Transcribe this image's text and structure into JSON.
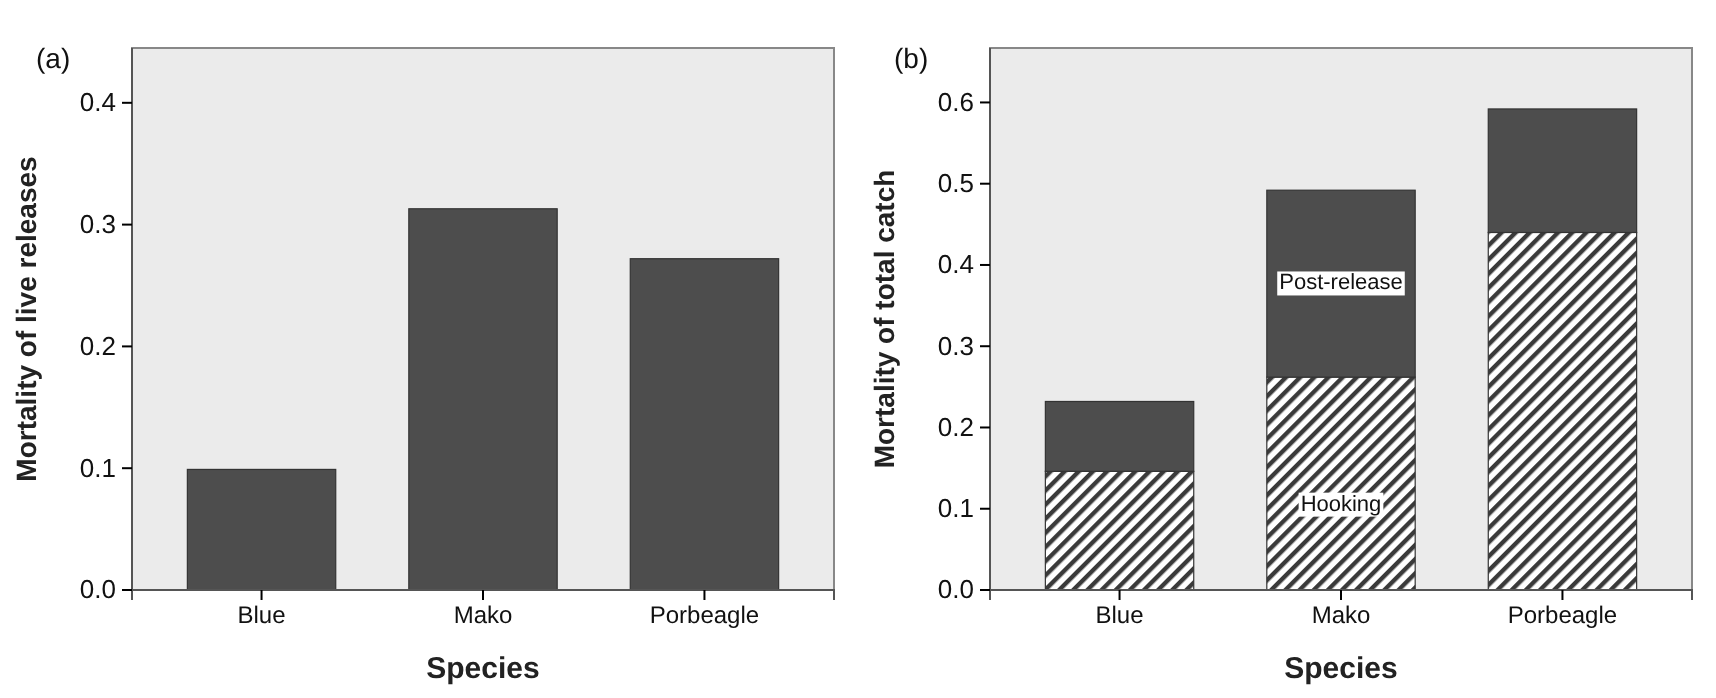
{
  "chart_data": [
    {
      "type": "bar",
      "title": "(a)",
      "xlabel": "Species",
      "ylabel": "Mortality of live releases",
      "categories": [
        "Blue",
        "Mako",
        "Porbeagle"
      ],
      "values": [
        0.099,
        0.313,
        0.272
      ],
      "color": "#4d4d4d",
      "ylim": [
        0,
        0.445
      ],
      "yticks": [
        {
          "value": 0,
          "label": "0.0"
        },
        0.1,
        0.2,
        0.3,
        0.4
      ],
      "grid": false
    },
    {
      "type": "bar",
      "title": "(b)",
      "xlabel": "Species",
      "ylabel": "Mortality of total catch",
      "categories": [
        "Blue",
        "Mako",
        "Porbeagle"
      ],
      "stacked": true,
      "series": [
        {
          "name": "Hooking",
          "color": "#3a3a3a",
          "values": [
            0.146,
            0.262,
            0.44
          ]
        },
        {
          "name": "Post-release",
          "color": "#4d4d4d",
          "values": [
            0.086,
            0.23,
            0.152
          ]
        }
      ],
      "ylim": [
        0,
        0.667
      ],
      "yticks": [
        {
          "value": 0,
          "label": "0.0"
        },
        0.1,
        0.2,
        0.3,
        0.4,
        0.5,
        0.6
      ],
      "grid": false
    }
  ]
}
